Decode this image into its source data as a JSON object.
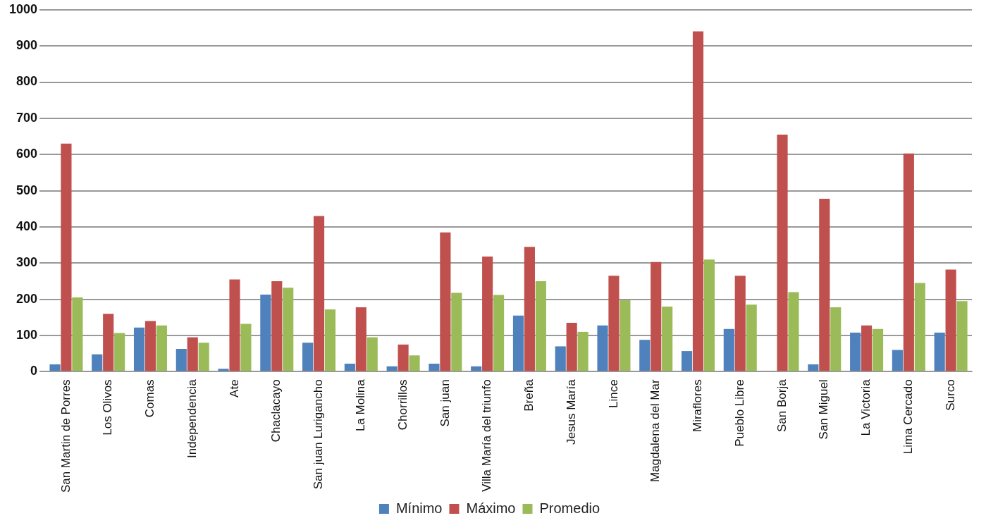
{
  "chart_data": {
    "type": "bar",
    "categories": [
      "San Martin de Porres",
      "Los Olivos",
      "Comas",
      "Independencia",
      "Ate",
      "Chaclacayo",
      "San juan Lurigancho",
      "La Molina",
      "Chorrillos",
      "San juan",
      "Villa María del triunfo",
      "Breña",
      "Jesus María",
      "Lince",
      "Magdalena del Mar",
      "Miraflores",
      "Pueblo Libre",
      "San Borja",
      "San Miguel",
      "La Victoria",
      "Lima Cercado",
      "Surco"
    ],
    "series": [
      {
        "name": "Mínimo",
        "color": "#4f81bd",
        "values": [
          20,
          48,
          122,
          63,
          8,
          213,
          80,
          22,
          15,
          22,
          15,
          155,
          70,
          128,
          88,
          57,
          118,
          null,
          20,
          108,
          60,
          108
        ]
      },
      {
        "name": "Máximo",
        "color": "#c0504d",
        "values": [
          630,
          160,
          140,
          95,
          255,
          250,
          430,
          178,
          75,
          385,
          318,
          345,
          135,
          265,
          303,
          940,
          265,
          655,
          478,
          128,
          603,
          282
        ]
      },
      {
        "name": "Promedio",
        "color": "#9bbb59",
        "values": [
          205,
          107,
          128,
          80,
          132,
          232,
          172,
          95,
          45,
          218,
          212,
          250,
          110,
          198,
          180,
          310,
          185,
          220,
          178,
          118,
          245,
          195
        ]
      }
    ],
    "ylim": [
      0,
      1000
    ],
    "yticks": [
      0,
      100,
      200,
      300,
      400,
      500,
      600,
      700,
      800,
      900,
      1000
    ],
    "grid": "y",
    "legend": "bottom"
  }
}
